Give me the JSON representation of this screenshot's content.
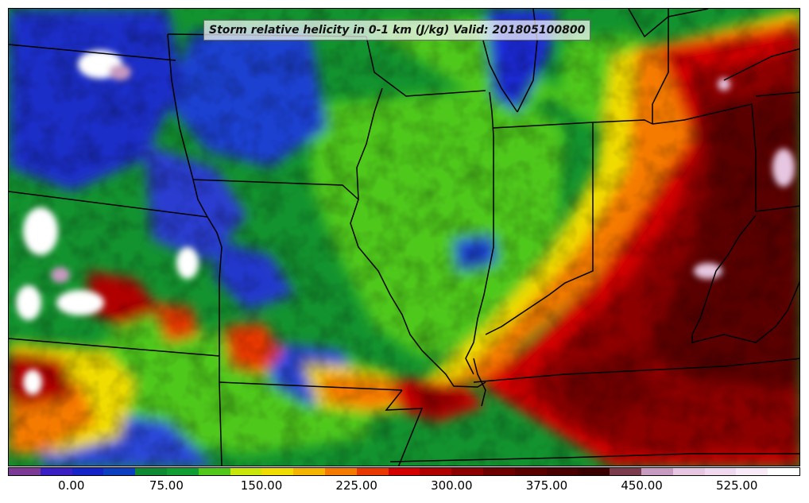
{
  "map": {
    "title": "Storm relative helicity in 0-1 km (J/kg) Valid: 201805100800",
    "region": "Midwest / Ohio Valley, United States"
  },
  "colorbar": {
    "colors": [
      "#7c3a96",
      "#3a1fc4",
      "#1424c8",
      "#0b3fbf",
      "#0d8a32",
      "#109e33",
      "#4fc81a",
      "#c8e60a",
      "#f0dc00",
      "#f5b400",
      "#f57a00",
      "#e83800",
      "#d40000",
      "#b00000",
      "#8c0000",
      "#6e0000",
      "#5a0000",
      "#4a0000",
      "#3a0000",
      "#7a3c4c",
      "#c79ac0",
      "#e6c6e0",
      "#f0d8ee",
      "#f8eaf6",
      "#ffffff"
    ],
    "tick_labels": [
      "0.00",
      "75.00",
      "150.00",
      "225.00",
      "300.00",
      "375.00",
      "450.00",
      "525.00"
    ],
    "tick_values": [
      0,
      75,
      150,
      225,
      300,
      375,
      450,
      525
    ],
    "min": -50,
    "max": 575,
    "units": "J/kg"
  }
}
